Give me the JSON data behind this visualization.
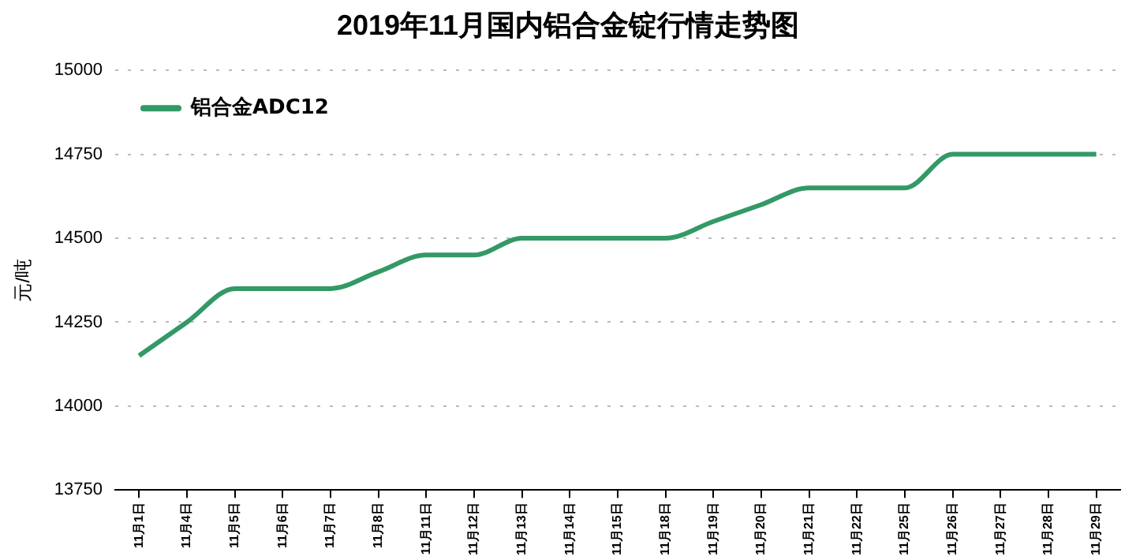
{
  "chart_data": {
    "type": "line",
    "title": "2019年11月国内铝合金锭行情走势图",
    "ylabel": "元/吨",
    "categories": [
      "11月1日",
      "11月4日",
      "11月5日",
      "11月6日",
      "11月7日",
      "11月8日",
      "11月11日",
      "11月12日",
      "11月13日",
      "11月14日",
      "11月15日",
      "11月18日",
      "11月19日",
      "11月20日",
      "11月21日",
      "11月22日",
      "11月25日",
      "11月26日",
      "11月27日",
      "11月28日",
      "11月29日"
    ],
    "series": [
      {
        "name": "铝合金ADC12",
        "color": "#339966",
        "values": [
          14150,
          14250,
          14350,
          14350,
          14350,
          14400,
          14450,
          14450,
          14500,
          14500,
          14500,
          14500,
          14550,
          14600,
          14650,
          14650,
          14650,
          14750,
          14750,
          14750,
          14750
        ]
      }
    ],
    "ylim": [
      13750,
      15000
    ],
    "yticks": [
      13750,
      14000,
      14250,
      14500,
      14750,
      15000
    ],
    "grid": "y",
    "legend": "top left",
    "marker": "none",
    "line_style": "solid"
  }
}
